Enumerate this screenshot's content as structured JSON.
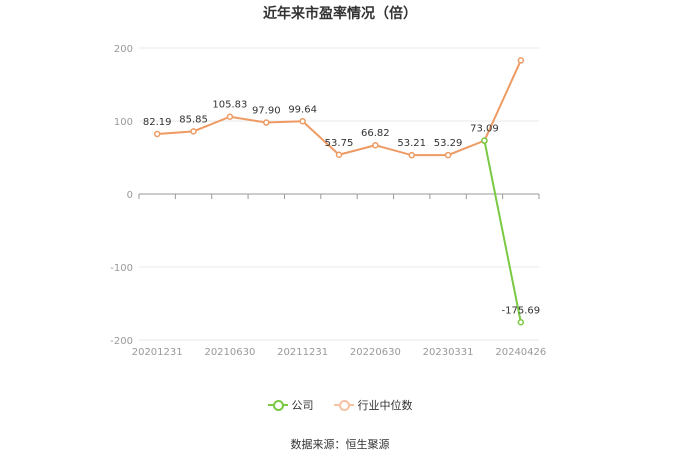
{
  "title": "近年来市盈率情况（倍）",
  "source": "数据来源：恒生聚源",
  "colors": {
    "company": "#7ac943",
    "industry": "#ee9a63",
    "grid": "#e8e8e8",
    "axis": "#999999",
    "tick_text": "#999999",
    "label_text": "#333333"
  },
  "chart_data": {
    "type": "line",
    "ylim": [
      -200,
      200
    ],
    "yticks": [
      200,
      100,
      0,
      -100,
      -200
    ],
    "x": [
      "20201231",
      "20210331",
      "20210630",
      "20210930",
      "20211231",
      "20220331",
      "20220630",
      "20220930",
      "20230331",
      "20230630",
      "20240426"
    ],
    "xtick_labels": [
      "20201231",
      "",
      "20210630",
      "",
      "20211231",
      "",
      "20220630",
      "",
      "20230331",
      "",
      "20240426"
    ],
    "legend": [
      "公司",
      "行业中位数"
    ],
    "legend_position": "bottom",
    "series": [
      {
        "name": "公司",
        "color": "#7ac943",
        "values": [
          null,
          null,
          null,
          null,
          null,
          null,
          null,
          null,
          null,
          73.09,
          -175.69
        ]
      },
      {
        "name": "行业中位数",
        "color": "#ee9a63",
        "values": [
          82.19,
          85.85,
          105.83,
          97.9,
          99.64,
          53.75,
          66.82,
          53.21,
          53.29,
          73.09,
          183.0
        ]
      }
    ],
    "data_labels": [
      "82.19",
      "85.85",
      "105.83",
      "97.90",
      "99.64",
      "53.75",
      "66.82",
      "53.21",
      "53.29",
      "73.09",
      "-175.69"
    ]
  }
}
